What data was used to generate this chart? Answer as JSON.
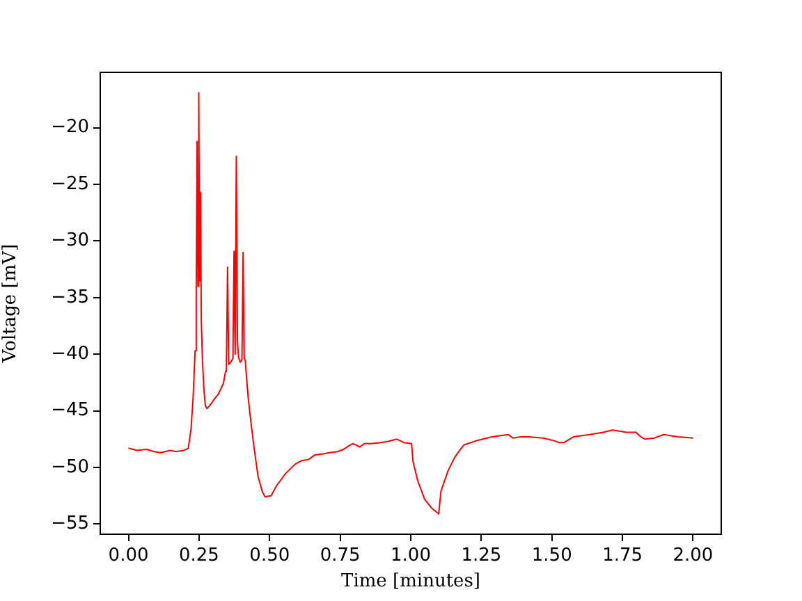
{
  "chart_data": {
    "type": "line",
    "xlabel": "Time [minutes]",
    "ylabel": "Voltage [mV]",
    "color": "#ff0000",
    "grid": false,
    "marker": "none",
    "line_style": "solid",
    "xlim": [
      -0.1,
      2.1
    ],
    "ylim": [
      -55.9,
      -15.1
    ],
    "xticks": [
      {
        "value": 0,
        "label": "0.00"
      },
      {
        "value": 0.25,
        "label": "0.25"
      },
      {
        "value": 0.5,
        "label": "0.50"
      },
      {
        "value": 0.75,
        "label": "0.75"
      },
      {
        "value": 1,
        "label": "1.00"
      },
      {
        "value": 1.25,
        "label": "1.25"
      },
      {
        "value": 1.5,
        "label": "1.50"
      },
      {
        "value": 1.75,
        "label": "1.75"
      },
      {
        "value": 2,
        "label": "2.00"
      }
    ],
    "yticks": [
      {
        "value": -55,
        "label": "−55"
      },
      {
        "value": -50,
        "label": "−50"
      },
      {
        "value": -45,
        "label": "−45"
      },
      {
        "value": -40,
        "label": "−40"
      },
      {
        "value": -35,
        "label": "−35"
      },
      {
        "value": -30,
        "label": "−30"
      },
      {
        "value": -25,
        "label": "−25"
      },
      {
        "value": -20,
        "label": "−20"
      }
    ],
    "x": [
      0.0,
      0.03,
      0.064,
      0.09,
      0.113,
      0.13,
      0.147,
      0.17,
      0.195,
      0.212,
      0.222,
      0.229,
      0.236,
      0.24,
      0.243,
      0.246,
      0.249,
      0.252,
      0.255,
      0.258,
      0.262,
      0.267,
      0.272,
      0.278,
      0.286,
      0.295,
      0.303,
      0.319,
      0.336,
      0.344,
      0.347,
      0.351,
      0.355,
      0.362,
      0.37,
      0.374,
      0.378,
      0.382,
      0.386,
      0.39,
      0.396,
      0.402,
      0.406,
      0.41,
      0.414,
      0.418,
      0.424,
      0.43,
      0.443,
      0.459,
      0.475,
      0.484,
      0.505,
      0.525,
      0.558,
      0.591,
      0.614,
      0.638,
      0.66,
      0.689,
      0.712,
      0.74,
      0.762,
      0.78,
      0.794,
      0.805,
      0.819,
      0.835,
      0.86,
      0.893,
      0.92,
      0.951,
      0.975,
      1.003,
      1.008,
      1.025,
      1.049,
      1.074,
      1.099,
      1.107,
      1.132,
      1.156,
      1.173,
      1.189,
      1.238,
      1.288,
      1.345,
      1.362,
      1.39,
      1.419,
      1.469,
      1.502,
      1.525,
      1.543,
      1.576,
      1.633,
      1.682,
      1.715,
      1.765,
      1.798,
      1.815,
      1.83,
      1.863,
      1.896,
      1.946,
      2.0
    ],
    "values": [
      -48.3,
      -48.5,
      -48.4,
      -48.6,
      -48.7,
      -48.6,
      -48.5,
      -48.6,
      -48.5,
      -48.3,
      -46.5,
      -43.8,
      -39.7,
      -34.4,
      -21.2,
      -34.0,
      -16.9,
      -33.5,
      -25.7,
      -37.0,
      -40.5,
      -43.0,
      -44.5,
      -44.8,
      -44.6,
      -44.3,
      -44.0,
      -43.5,
      -42.6,
      -41.5,
      -41.0,
      -32.3,
      -40.9,
      -40.7,
      -40.4,
      -30.9,
      -40.0,
      -22.5,
      -38.8,
      -40.3,
      -40.7,
      -40.5,
      -31.0,
      -40.3,
      -40.6,
      -42.0,
      -43.8,
      -45.2,
      -47.9,
      -50.8,
      -52.2,
      -52.6,
      -52.5,
      -51.6,
      -50.5,
      -49.7,
      -49.4,
      -49.3,
      -48.9,
      -48.8,
      -48.7,
      -48.6,
      -48.4,
      -48.1,
      -47.9,
      -48.0,
      -48.2,
      -47.9,
      -47.9,
      -47.8,
      -47.7,
      -47.5,
      -47.8,
      -47.9,
      -49.5,
      -51.2,
      -52.8,
      -53.6,
      -54.1,
      -52.1,
      -50.3,
      -49.1,
      -48.5,
      -48.0,
      -47.6,
      -47.3,
      -47.1,
      -47.4,
      -47.3,
      -47.3,
      -47.4,
      -47.6,
      -47.8,
      -47.8,
      -47.3,
      -47.1,
      -46.9,
      -46.7,
      -46.9,
      -46.9,
      -47.3,
      -47.5,
      -47.4,
      -47.1,
      -47.3,
      -47.4
    ]
  }
}
